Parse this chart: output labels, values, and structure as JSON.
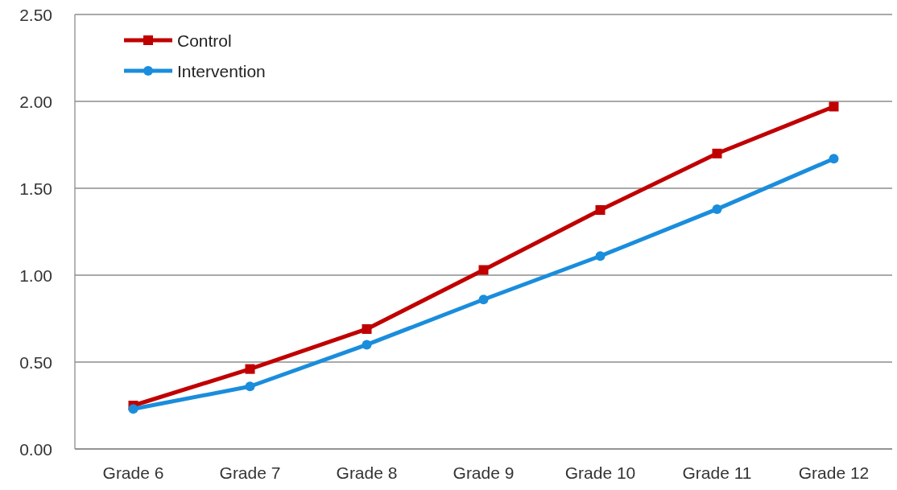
{
  "chart_data": {
    "type": "line",
    "categories": [
      "Grade 6",
      "Grade 7",
      "Grade 8",
      "Grade 9",
      "Grade 10",
      "Grade 11",
      "Grade 12"
    ],
    "series": [
      {
        "name": "Control",
        "color": "#c00000",
        "values": [
          0.25,
          0.46,
          0.69,
          1.03,
          1.375,
          1.7,
          1.97
        ],
        "marker": "square"
      },
      {
        "name": "Intervention",
        "color": "#1a8ddc",
        "values": [
          0.23,
          0.36,
          0.6,
          0.86,
          1.11,
          1.38,
          1.67
        ],
        "marker": "circle"
      }
    ],
    "ylim": [
      0,
      2.5
    ],
    "yticks": [
      {
        "value": 0,
        "label": "0.00"
      },
      {
        "value": 0.5,
        "label": "0.50"
      },
      {
        "value": 1,
        "label": "1.00"
      },
      {
        "value": 1.5,
        "label": "1.50"
      },
      {
        "value": 2,
        "label": "2.00"
      },
      {
        "value": 2.5,
        "label": "2.50"
      }
    ],
    "grid": "y",
    "legend": "top left",
    "line_style": "solid"
  }
}
